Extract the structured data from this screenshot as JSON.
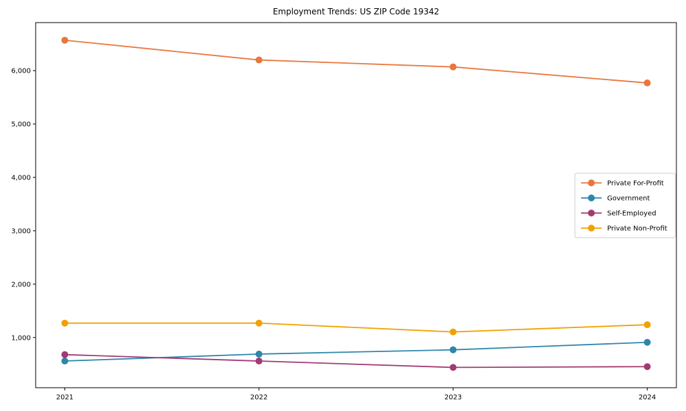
{
  "chart_data": {
    "type": "line",
    "title": "Employment Trends: US ZIP Code 19342",
    "xlabel": "",
    "ylabel": "",
    "x": [
      2021,
      2022,
      2023,
      2024
    ],
    "x_tick_labels": [
      "2021",
      "2022",
      "2023",
      "2024"
    ],
    "y_ticks": [
      1000,
      2000,
      3000,
      4000,
      5000,
      6000
    ],
    "y_tick_labels": [
      "1,000",
      "2,000",
      "3,000",
      "4,000",
      "5,000",
      "6,000"
    ],
    "xlim": [
      2020.85,
      2024.15
    ],
    "ylim": [
      60,
      6900
    ],
    "grid": false,
    "legend_position": "center-right",
    "series": [
      {
        "name": "Private For-Profit",
        "color": "#E8773D",
        "values": [
          6570,
          6200,
          6070,
          5770
        ]
      },
      {
        "name": "Government",
        "color": "#2E86AB",
        "values": [
          560,
          690,
          770,
          910
        ]
      },
      {
        "name": "Self-Employed",
        "color": "#A23B72",
        "values": [
          680,
          560,
          440,
          455
        ]
      },
      {
        "name": "Private Non-Profit",
        "color": "#F2A104",
        "values": [
          1270,
          1270,
          1105,
          1240
        ]
      }
    ],
    "marker": "circle",
    "marker_radius": 5,
    "line_width": 1.8,
    "axis_color": "#000000",
    "legend_border_color": "#cccccc",
    "background_color": "#ffffff"
  }
}
